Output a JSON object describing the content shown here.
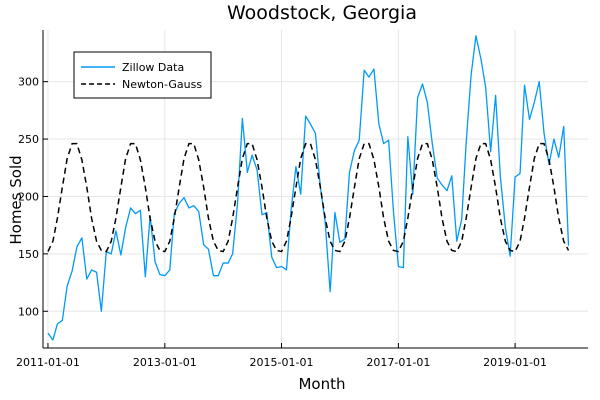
{
  "chart_data": {
    "type": "line",
    "title": "Woodstock, Georgia",
    "xlabel": "Month",
    "ylabel": "Homes Sold",
    "x_ticks": [
      "2011-01-01",
      "2013-01-01",
      "2015-01-01",
      "2017-01-01",
      "2019-01-01"
    ],
    "y_ticks": [
      100,
      150,
      200,
      250,
      300
    ],
    "xlim": [
      "2010-12-01",
      "2020-04-01"
    ],
    "ylim": [
      68,
      345
    ],
    "grid": true,
    "legend_position": "top-left",
    "start_month": "2011-01-01",
    "series": [
      {
        "name": "Zillow Data",
        "color": "#009AF9",
        "style": "solid",
        "values": [
          81,
          75,
          89,
          92,
          122,
          135,
          156,
          164,
          128,
          136,
          134,
          100,
          152,
          150,
          170,
          149,
          173,
          190,
          185,
          188,
          130,
          183,
          143,
          132,
          131,
          136,
          185,
          194,
          199,
          190,
          192,
          187,
          158,
          154,
          131,
          131,
          142,
          142,
          150,
          194,
          268,
          221,
          236,
          223,
          184,
          186,
          147,
          138,
          139,
          136,
          187,
          226,
          202,
          270,
          263,
          255,
          208,
          178,
          117,
          186,
          160,
          163,
          221,
          240,
          249,
          310,
          304,
          311,
          263,
          246,
          249,
          187,
          139,
          138,
          252,
          202,
          286,
          298,
          282,
          246,
          216,
          210,
          205,
          218,
          161,
          180,
          247,
          306,
          340,
          320,
          295,
          239,
          288,
          217,
          173,
          148,
          217,
          220,
          297,
          267,
          282,
          300,
          255,
          228,
          250,
          234,
          261,
          157
        ]
      },
      {
        "name": "Newton-Gauss",
        "color": "#000000",
        "style": "dashed",
        "values": [
          152,
          161,
          181,
          208,
          233,
          246,
          246,
          232,
          208,
          181,
          161,
          153,
          152,
          161,
          181,
          208,
          233,
          246,
          246,
          232,
          208,
          181,
          161,
          153,
          152,
          161,
          181,
          208,
          233,
          246,
          246,
          232,
          208,
          181,
          161,
          153,
          152,
          161,
          181,
          208,
          233,
          246,
          246,
          232,
          208,
          181,
          161,
          153,
          152,
          161,
          181,
          208,
          233,
          246,
          246,
          232,
          208,
          181,
          161,
          153,
          152,
          161,
          181,
          208,
          233,
          246,
          246,
          232,
          208,
          181,
          161,
          153,
          152,
          161,
          181,
          208,
          233,
          246,
          246,
          232,
          208,
          181,
          161,
          153,
          152,
          161,
          181,
          208,
          233,
          246,
          246,
          232,
          208,
          181,
          161,
          153,
          152,
          161,
          181,
          208,
          233,
          246,
          246,
          232,
          208,
          181,
          161,
          153
        ]
      }
    ]
  }
}
